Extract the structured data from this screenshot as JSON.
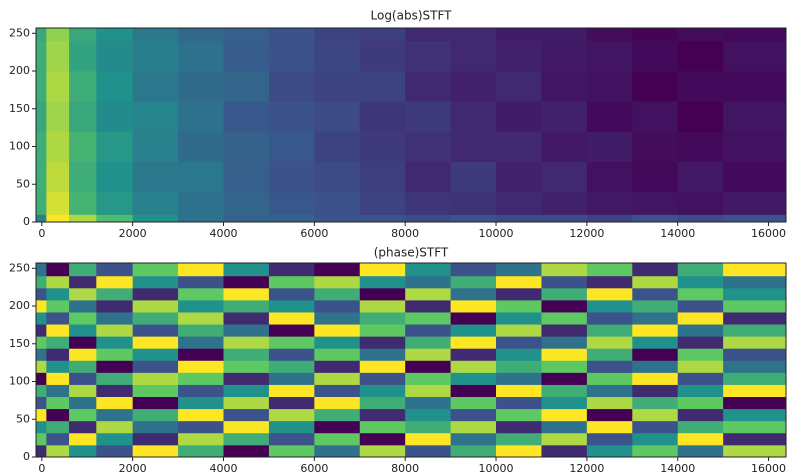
{
  "chart_data": [
    {
      "type": "heatmap",
      "title": "Log(abs)STFT",
      "colormap": "viridis",
      "x_edges": [
        -128,
        100,
        600,
        1200,
        2000,
        3000,
        4000,
        5000,
        6000,
        7000,
        8000,
        9000,
        10000,
        11000,
        12000,
        13000,
        14000,
        15000,
        16384
      ],
      "y_edges": [
        0,
        10,
        40,
        80,
        120,
        160,
        200,
        240,
        257
      ],
      "values": [
        [
          0.55,
          1.0,
          0.9,
          0.75,
          0.6,
          0.5,
          0.45,
          0.45,
          0.4,
          0.4,
          0.38,
          0.4,
          0.38,
          0.38,
          0.36,
          0.4,
          0.38,
          0.4
        ],
        [
          0.7,
          0.95,
          0.72,
          0.62,
          0.55,
          0.5,
          0.46,
          0.42,
          0.4,
          0.36,
          0.33,
          0.32,
          0.3,
          0.28,
          0.26,
          0.25,
          0.24,
          0.26
        ],
        [
          0.7,
          0.92,
          0.7,
          0.6,
          0.52,
          0.52,
          0.44,
          0.4,
          0.38,
          0.35,
          0.3,
          0.34,
          0.28,
          0.3,
          0.24,
          0.22,
          0.26,
          0.22
        ],
        [
          0.7,
          0.9,
          0.72,
          0.62,
          0.55,
          0.48,
          0.45,
          0.42,
          0.36,
          0.34,
          0.32,
          0.3,
          0.3,
          0.26,
          0.27,
          0.23,
          0.22,
          0.24
        ],
        [
          0.68,
          0.88,
          0.68,
          0.58,
          0.56,
          0.5,
          0.42,
          0.4,
          0.38,
          0.33,
          0.34,
          0.3,
          0.27,
          0.28,
          0.22,
          0.24,
          0.2,
          0.25
        ],
        [
          0.7,
          0.9,
          0.7,
          0.6,
          0.52,
          0.48,
          0.46,
          0.38,
          0.36,
          0.36,
          0.3,
          0.28,
          0.3,
          0.25,
          0.24,
          0.2,
          0.22,
          0.22
        ],
        [
          0.7,
          0.88,
          0.66,
          0.58,
          0.54,
          0.5,
          0.43,
          0.4,
          0.37,
          0.34,
          0.32,
          0.3,
          0.28,
          0.26,
          0.25,
          0.22,
          0.2,
          0.24
        ],
        [
          0.68,
          0.86,
          0.68,
          0.6,
          0.52,
          0.47,
          0.44,
          0.4,
          0.36,
          0.35,
          0.3,
          0.3,
          0.27,
          0.27,
          0.23,
          0.21,
          0.23,
          0.22
        ]
      ],
      "xlim": [
        -128,
        16384
      ],
      "ylim": [
        0,
        257
      ],
      "xticks": [
        0,
        2000,
        4000,
        6000,
        8000,
        10000,
        12000,
        14000,
        16000
      ],
      "yticks": [
        0,
        50,
        100,
        150,
        200,
        250
      ]
    },
    {
      "type": "heatmap",
      "title": "(phase)STFT",
      "colormap": "viridis",
      "x_edges": [
        -128,
        100,
        600,
        1200,
        2000,
        3000,
        4000,
        5000,
        6000,
        7000,
        8000,
        9000,
        10000,
        11000,
        12000,
        13000,
        14000,
        15000,
        16384
      ],
      "y_edges": [
        0,
        16,
        32,
        48,
        64,
        80,
        96,
        112,
        128,
        144,
        160,
        176,
        192,
        208,
        224,
        240,
        257
      ],
      "values": [
        [
          0.2,
          0.8,
          0.5,
          0.3,
          0.9,
          0.6,
          0.1,
          0.7,
          0.4,
          0.8,
          0.3,
          0.6,
          0.9,
          0.2,
          0.5,
          0.7,
          0.4,
          0.8
        ],
        [
          0.7,
          0.3,
          0.9,
          0.5,
          0.2,
          0.8,
          0.6,
          0.3,
          0.7,
          0.1,
          0.9,
          0.4,
          0.6,
          0.8,
          0.3,
          0.5,
          0.9,
          0.2
        ],
        [
          0.5,
          0.6,
          0.2,
          0.8,
          0.4,
          0.3,
          0.9,
          0.5,
          0.1,
          0.7,
          0.6,
          0.8,
          0.2,
          0.4,
          0.9,
          0.3,
          0.6,
          0.7
        ],
        [
          0.9,
          0.1,
          0.7,
          0.4,
          0.6,
          0.9,
          0.3,
          0.8,
          0.6,
          0.2,
          0.5,
          0.3,
          0.7,
          0.9,
          0.1,
          0.8,
          0.2,
          0.5
        ],
        [
          0.3,
          0.7,
          0.4,
          0.9,
          0.1,
          0.5,
          0.8,
          0.2,
          0.9,
          0.6,
          0.4,
          0.7,
          0.3,
          0.5,
          0.8,
          0.6,
          0.7,
          0.1
        ],
        [
          0.6,
          0.4,
          0.8,
          0.2,
          0.7,
          0.3,
          0.5,
          0.9,
          0.3,
          0.5,
          0.8,
          0.1,
          0.9,
          0.6,
          0.4,
          0.2,
          0.5,
          0.9
        ],
        [
          0.1,
          0.9,
          0.3,
          0.6,
          0.8,
          0.7,
          0.2,
          0.4,
          0.8,
          0.3,
          0.7,
          0.5,
          0.4,
          0.1,
          0.7,
          0.9,
          0.3,
          0.6
        ],
        [
          0.8,
          0.5,
          0.6,
          0.1,
          0.3,
          0.9,
          0.7,
          0.6,
          0.2,
          0.9,
          0.1,
          0.8,
          0.6,
          0.7,
          0.3,
          0.4,
          0.8,
          0.4
        ],
        [
          0.4,
          0.2,
          0.9,
          0.7,
          0.5,
          0.1,
          0.6,
          0.3,
          0.7,
          0.4,
          0.8,
          0.2,
          0.5,
          0.9,
          0.6,
          0.1,
          0.7,
          0.3
        ],
        [
          0.7,
          0.6,
          0.1,
          0.5,
          0.9,
          0.4,
          0.8,
          0.7,
          0.5,
          0.2,
          0.6,
          0.9,
          0.3,
          0.4,
          0.8,
          0.5,
          0.2,
          0.8
        ],
        [
          0.2,
          0.9,
          0.5,
          0.8,
          0.3,
          0.6,
          0.4,
          0.1,
          0.9,
          0.7,
          0.3,
          0.5,
          0.8,
          0.2,
          0.6,
          0.9,
          0.4,
          0.6
        ],
        [
          0.5,
          0.3,
          0.7,
          0.4,
          0.6,
          0.8,
          0.2,
          0.9,
          0.4,
          0.6,
          0.7,
          0.1,
          0.5,
          0.7,
          0.3,
          0.4,
          0.9,
          0.2
        ],
        [
          0.9,
          0.7,
          0.4,
          0.2,
          0.8,
          0.5,
          0.6,
          0.5,
          0.3,
          0.8,
          0.2,
          0.9,
          0.7,
          0.1,
          0.5,
          0.6,
          0.3,
          0.7
        ],
        [
          0.3,
          0.5,
          0.8,
          0.6,
          0.2,
          0.7,
          0.9,
          0.3,
          0.6,
          0.1,
          0.8,
          0.4,
          0.2,
          0.6,
          0.9,
          0.3,
          0.7,
          0.5
        ],
        [
          0.6,
          0.8,
          0.2,
          0.9,
          0.5,
          0.3,
          0.1,
          0.7,
          0.8,
          0.5,
          0.4,
          0.6,
          0.9,
          0.3,
          0.2,
          0.8,
          0.5,
          0.4
        ],
        [
          0.4,
          0.1,
          0.6,
          0.3,
          0.7,
          0.9,
          0.5,
          0.2,
          0.1,
          0.9,
          0.5,
          0.3,
          0.4,
          0.8,
          0.7,
          0.2,
          0.6,
          0.9
        ]
      ],
      "xlim": [
        -128,
        16384
      ],
      "ylim": [
        0,
        257
      ],
      "xticks": [
        0,
        2000,
        4000,
        6000,
        8000,
        10000,
        12000,
        14000,
        16000
      ],
      "yticks": [
        0,
        50,
        100,
        150,
        200,
        250
      ]
    }
  ]
}
